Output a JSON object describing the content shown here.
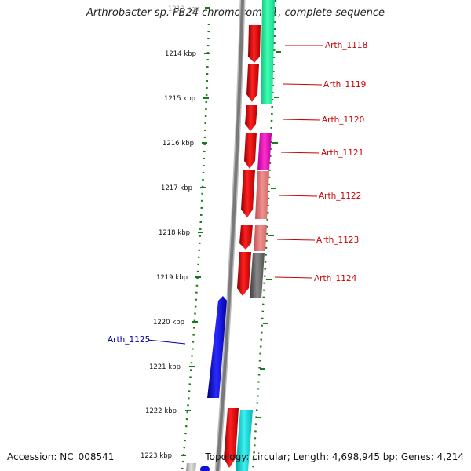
{
  "title": "Arthrobacter sp. FB24 chromosome 1, complete sequence",
  "footer": {
    "accession": "Accession: NC_008541",
    "summary": "Topology: circular; Length: 4,698,945 bp; Genes: 4,214"
  },
  "colors": {
    "forward_gene": "#e40000",
    "reverse_gene": "#1010d8",
    "label_red": "#cc0000",
    "label_blue": "#0000aa",
    "ruler": "#1a7a1a",
    "backbone": "#8a8a8a"
  },
  "ruler_ticks": [
    {
      "label": "1213 kbp"
    },
    {
      "label": "1214 kbp"
    },
    {
      "label": "1215 kbp"
    },
    {
      "label": "1216 kbp"
    },
    {
      "label": "1217 kbp"
    },
    {
      "label": "1218 kbp"
    },
    {
      "label": "1219 kbp"
    },
    {
      "label": "1220 kbp"
    },
    {
      "label": "1221 kbp"
    },
    {
      "label": "1222 kbp"
    },
    {
      "label": "1223 kbp"
    }
  ],
  "gene_labels": [
    {
      "name": "Arth_1118"
    },
    {
      "name": "Arth_1119"
    },
    {
      "name": "Arth_1120"
    },
    {
      "name": "Arth_1121"
    },
    {
      "name": "Arth_1122"
    },
    {
      "name": "Arth_1123"
    },
    {
      "name": "Arth_1124"
    },
    {
      "name": "Arth_1125"
    }
  ]
}
